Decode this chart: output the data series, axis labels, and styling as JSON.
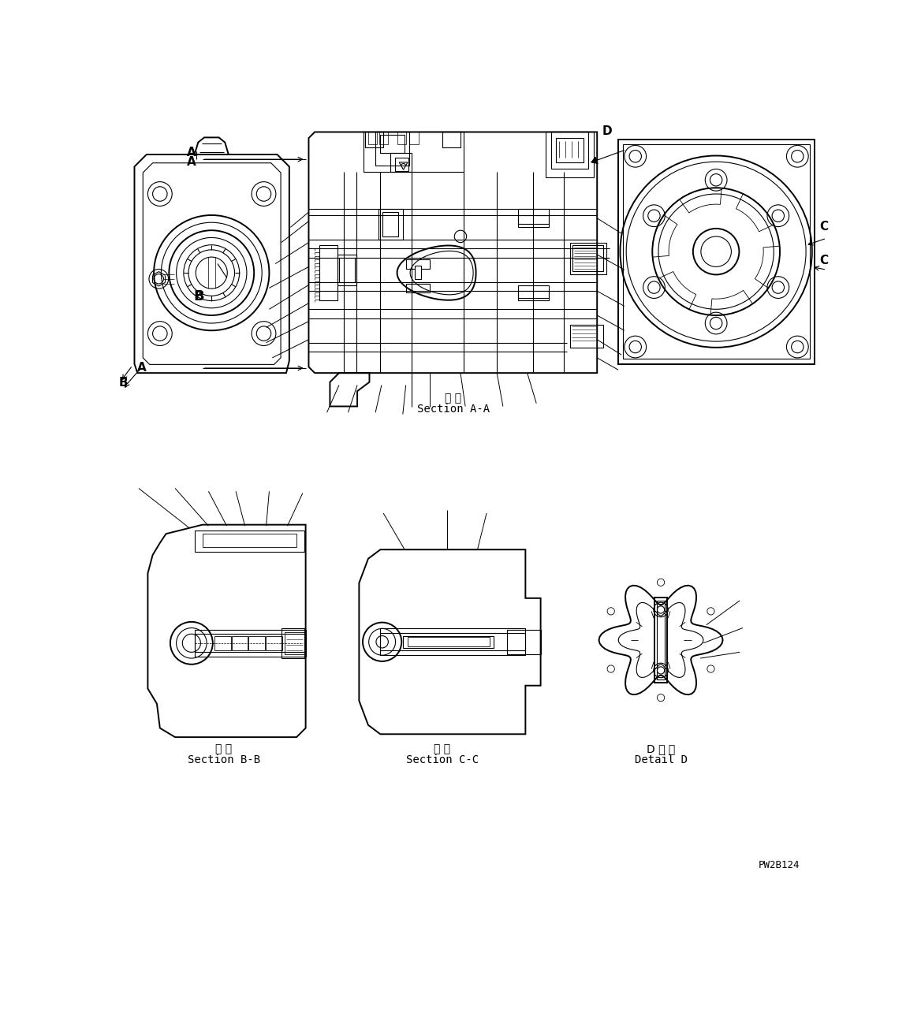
{
  "bg_color": "#ffffff",
  "lc": "#000000",
  "fig_width": 11.68,
  "fig_height": 12.8,
  "dpi": 100,
  "ref_code": "PW2B124",
  "AA_jp": "断 面",
  "AA_en": "Section A-A",
  "BB_jp": "断 面",
  "BB_en": "Section B-B",
  "CC_jp": "断 面",
  "CC_en": "Section C-C",
  "DD_jp": "D 詳 細",
  "DD_en": "Detail D"
}
